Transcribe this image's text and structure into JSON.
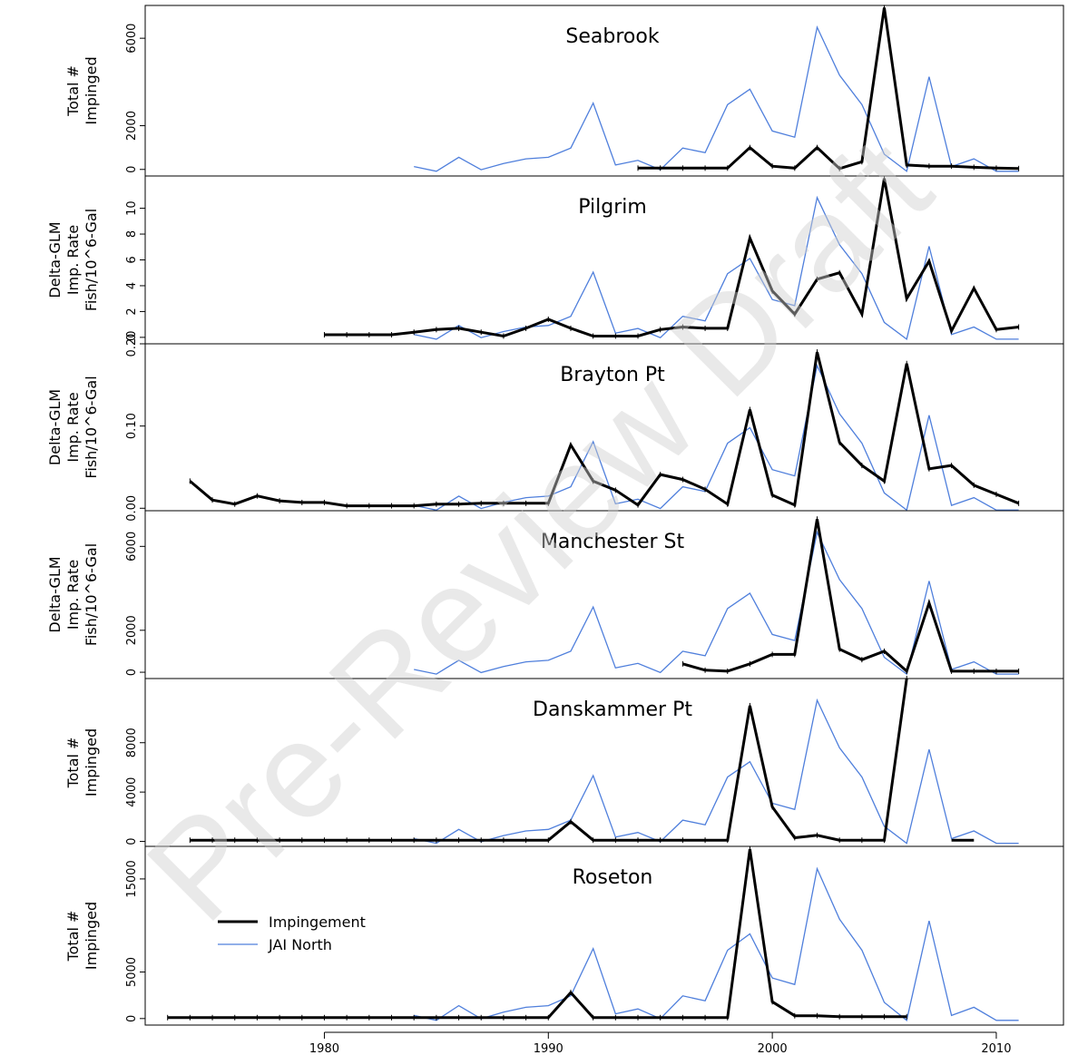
{
  "watermark": "Pre-Review Draft",
  "chart_data": {
    "type": "line",
    "x_axis": {
      "ticks": [
        1980,
        1990,
        2000,
        2010
      ],
      "range": [
        1972,
        2013
      ]
    },
    "legend": {
      "placement": "inside-bottom-left",
      "entries": [
        {
          "name": "Impingement",
          "color": "#000000"
        },
        {
          "name": "JAI North",
          "color": "#4f7fdc"
        }
      ]
    },
    "jai_north_x": [
      1984,
      1985,
      1986,
      1987,
      1988,
      1989,
      1990,
      1991,
      1992,
      1993,
      1994,
      1995,
      1996,
      1997,
      1998,
      1999,
      2000,
      2001,
      2002,
      2003,
      2004,
      2005,
      2006,
      2007,
      2008,
      2009,
      2010,
      2011
    ],
    "jai_north_rel": [
      0.03,
      0.0,
      0.09,
      0.01,
      0.05,
      0.08,
      0.09,
      0.15,
      0.44,
      0.04,
      0.07,
      0.01,
      0.15,
      0.12,
      0.43,
      0.53,
      0.26,
      0.22,
      0.93,
      0.62,
      0.43,
      0.11,
      0.0,
      0.61,
      0.03,
      0.08,
      0.0,
      0.0
    ],
    "panels": [
      {
        "title": "Seabrook",
        "ylabel": [
          "Total #",
          "Impinged"
        ],
        "yticks": [
          0,
          2000,
          6000
        ],
        "ylim": [
          -300,
          7500
        ],
        "impingement": {
          "x": [
            1994,
            1995,
            1996,
            1997,
            1998,
            1999,
            2000,
            2001,
            2002,
            2003,
            2004,
            2005,
            2006,
            2007,
            2008,
            2009,
            2010,
            2011
          ],
          "y": [
            60,
            60,
            60,
            60,
            60,
            1000,
            150,
            60,
            1000,
            40,
            350,
            7400,
            200,
            150,
            150,
            100,
            60,
            40
          ]
        }
      },
      {
        "title": "Pilgrim",
        "ylabel": [
          "Delta-GLM",
          "Imp. Rate",
          "Fish/10^6-Gal"
        ],
        "yticks": [
          0,
          2,
          4,
          6,
          8,
          10
        ],
        "ylim": [
          -0.5,
          12.5
        ],
        "impingement": {
          "x": [
            1980,
            1981,
            1982,
            1983,
            1984,
            1985,
            1986,
            1987,
            1988,
            1989,
            1990,
            1991,
            1992,
            1993,
            1994,
            1995,
            1996,
            1997,
            1998,
            1999,
            2000,
            2001,
            2002,
            2003,
            2004,
            2005,
            2006,
            2007,
            2008,
            2009,
            2010,
            2011
          ],
          "y": [
            0.2,
            0.2,
            0.2,
            0.2,
            0.4,
            0.6,
            0.7,
            0.4,
            0.1,
            0.7,
            1.4,
            0.7,
            0.1,
            0.1,
            0.1,
            0.6,
            0.8,
            0.7,
            0.7,
            7.7,
            3.6,
            1.8,
            4.5,
            5.0,
            1.8,
            12.3,
            3.0,
            5.9,
            0.5,
            3.8,
            0.6,
            0.8
          ]
        }
      },
      {
        "title": "Brayton Pt",
        "ylabel": [
          "Delta-GLM",
          "Imp. Rate",
          "Fish/10^6-Gal"
        ],
        "yticks": [
          0.0,
          0.1,
          0.2
        ],
        "ytick_labels": [
          "0.00",
          "0.10",
          "0.20"
        ],
        "ylim": [
          -0.003,
          0.2
        ],
        "impingement": {
          "x": [
            1974,
            1975,
            1976,
            1977,
            1978,
            1979,
            1980,
            1981,
            1982,
            1983,
            1984,
            1985,
            1986,
            1987,
            1988,
            1989,
            1990,
            1991,
            1992,
            1993,
            1994,
            1995,
            1996,
            1997,
            1998,
            1999,
            2000,
            2001,
            2002,
            2003,
            2004,
            2005,
            2006,
            2007,
            2008,
            2009,
            2010,
            2011
          ],
          "y": [
            0.033,
            0.01,
            0.005,
            0.015,
            0.009,
            0.007,
            0.007,
            0.003,
            0.003,
            0.003,
            0.003,
            0.005,
            0.005,
            0.006,
            0.006,
            0.006,
            0.006,
            0.077,
            0.033,
            0.022,
            0.004,
            0.041,
            0.035,
            0.023,
            0.005,
            0.12,
            0.016,
            0.004,
            0.19,
            0.08,
            0.052,
            0.033,
            0.176,
            0.048,
            0.052,
            0.028,
            0.017,
            0.006
          ]
        }
      },
      {
        "title": "Manchester St",
        "ylabel": [
          "Delta-GLM",
          "Imp. Rate",
          "Fish/10^6-Gal"
        ],
        "yticks": [
          0,
          2000,
          6000
        ],
        "ylim": [
          -300,
          7700
        ],
        "impingement": {
          "x": [
            1996,
            1997,
            1998,
            1999,
            2000,
            2001,
            2002,
            2003,
            2004,
            2005,
            2006,
            2007,
            2008,
            2009,
            2010,
            2011
          ],
          "y": [
            400,
            100,
            50,
            400,
            850,
            850,
            7300,
            1100,
            600,
            1000,
            50,
            3300,
            50,
            50,
            50,
            50
          ]
        }
      },
      {
        "title": "Danskammer Pt",
        "ylabel": [
          "Total #",
          "Impinged"
        ],
        "yticks": [
          0,
          4000,
          8000
        ],
        "ylim": [
          -400,
          13200
        ],
        "impingement": {
          "x": [
            1974,
            1975,
            1976,
            1977,
            1978,
            1979,
            1980,
            1981,
            1982,
            1983,
            1984,
            1985,
            1986,
            1987,
            1988,
            1989,
            1990,
            1991,
            1992,
            1993,
            1994,
            1995,
            1996,
            1997,
            1998,
            1999,
            2000,
            2001,
            2002,
            2003,
            2004,
            2005,
            2006
          ],
          "y": [
            100,
            100,
            100,
            100,
            100,
            100,
            100,
            100,
            100,
            100,
            100,
            100,
            100,
            100,
            100,
            100,
            100,
            1600,
            100,
            100,
            100,
            100,
            100,
            100,
            100,
            11000,
            2800,
            300,
            500,
            100,
            100,
            100,
            13200
          ],
          "segment2": {
            "x": [
              2008,
              2009
            ],
            "y": [
              100,
              100
            ]
          }
        }
      },
      {
        "title": "Roseton",
        "ylabel": [
          "Total #",
          "Impinged"
        ],
        "yticks": [
          0,
          5000,
          15000
        ],
        "ylim": [
          -700,
          18500
        ],
        "impingement": {
          "x": [
            1973,
            1974,
            1975,
            1976,
            1977,
            1978,
            1979,
            1980,
            1981,
            1982,
            1983,
            1984,
            1985,
            1986,
            1987,
            1988,
            1989,
            1990,
            1991,
            1992,
            1993,
            1994,
            1995,
            1996,
            1997,
            1998,
            1999,
            2000,
            2001,
            2002,
            2003,
            2004,
            2005,
            2006
          ],
          "y": [
            100,
            100,
            100,
            100,
            100,
            100,
            100,
            100,
            100,
            100,
            100,
            100,
            100,
            100,
            100,
            100,
            100,
            100,
            2800,
            100,
            100,
            100,
            100,
            100,
            100,
            100,
            18200,
            1800,
            300,
            300,
            200,
            200,
            200,
            200
          ]
        }
      }
    ]
  }
}
